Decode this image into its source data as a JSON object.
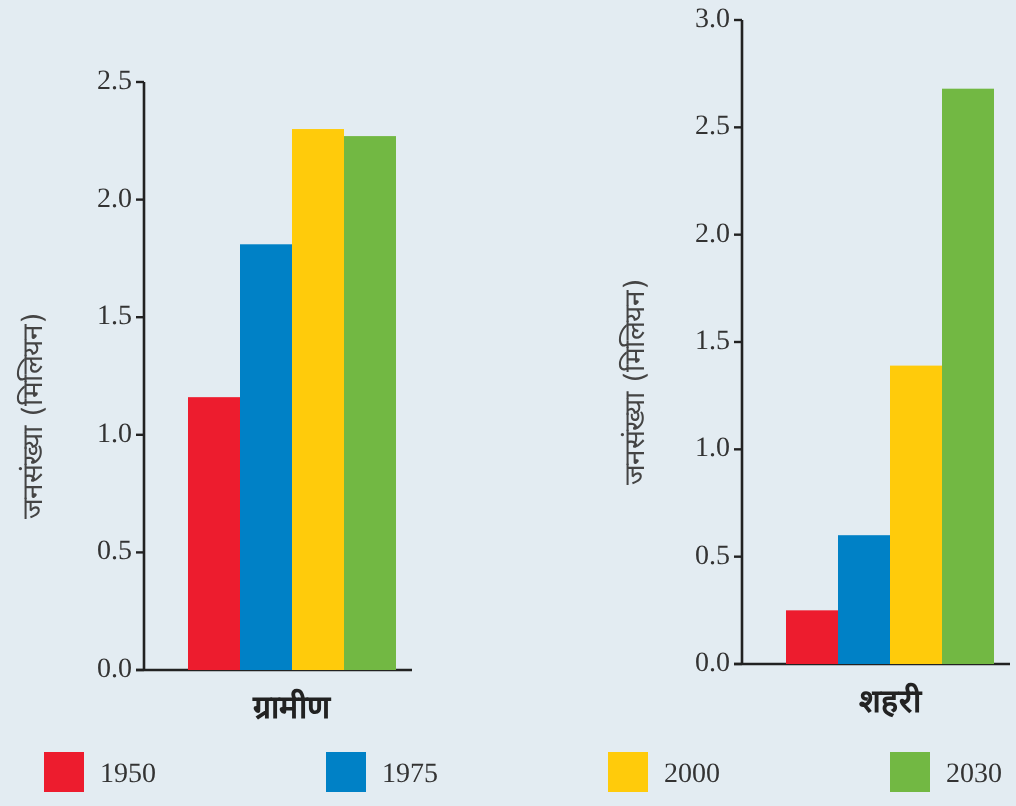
{
  "chart_data": [
    {
      "type": "bar",
      "categories": [
        "ग्रामीण"
      ],
      "ylabel": "जनसंख्या (मिलियन)",
      "ylim": [
        0,
        2.5
      ],
      "yticks": [
        {
          "value": 0,
          "label": "0.0"
        },
        {
          "value": 0.5,
          "label": "0.5"
        },
        {
          "value": 1,
          "label": "1.0"
        },
        {
          "value": 1.5,
          "label": "1.5"
        },
        {
          "value": 2,
          "label": "2.0"
        },
        {
          "value": 2.5,
          "label": "2.5"
        }
      ],
      "legend": "bottom",
      "series": [
        {
          "name": "1950",
          "color": "#ed1c2e",
          "values": [
            1.16
          ]
        },
        {
          "name": "1975",
          "color": "#0081c6",
          "values": [
            1.81
          ]
        },
        {
          "name": "2000",
          "color": "#ffcb0b",
          "values": [
            2.3
          ]
        },
        {
          "name": "2030",
          "color": "#72b843",
          "values": [
            2.27
          ]
        }
      ]
    },
    {
      "type": "bar",
      "categories": [
        "शहरी"
      ],
      "ylabel": "जनसंख्या (मिलियन)",
      "ylim": [
        0,
        3
      ],
      "yticks": [
        {
          "value": 0,
          "label": "0.0"
        },
        {
          "value": 0.5,
          "label": "0.5"
        },
        {
          "value": 1,
          "label": "1.0"
        },
        {
          "value": 1.5,
          "label": "1.5"
        },
        {
          "value": 2,
          "label": "2.0"
        },
        {
          "value": 2.5,
          "label": "2.5"
        },
        {
          "value": 3,
          "label": "3.0"
        }
      ],
      "series": [
        {
          "color": "#ed1c2e",
          "values": [
            0.25
          ]
        },
        {
          "color": "#0081c6",
          "values": [
            0.6
          ]
        },
        {
          "color": "#ffcb0b",
          "values": [
            1.39
          ]
        },
        {
          "color": "#72b843",
          "values": [
            2.68
          ]
        }
      ]
    }
  ]
}
